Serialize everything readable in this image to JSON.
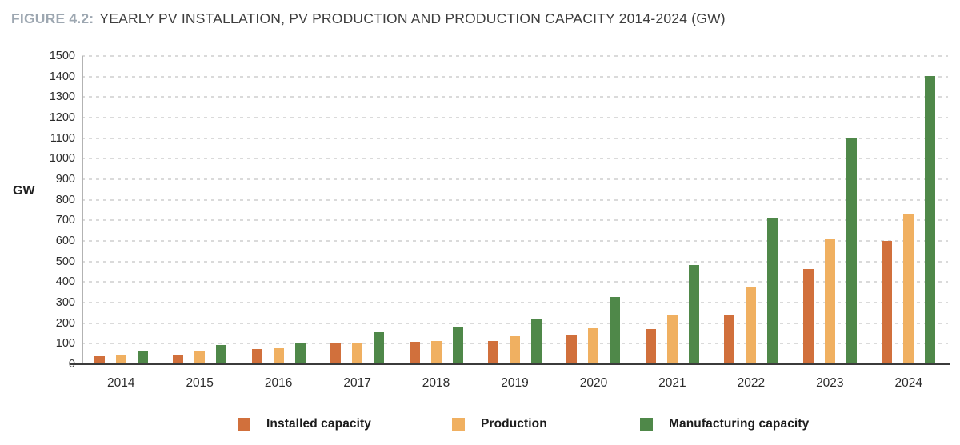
{
  "header": {
    "figure_label": "FIGURE 4.2:",
    "title": "YEARLY PV INSTALLATION, PV PRODUCTION AND PRODUCTION CAPACITY 2014-2024 (GW)"
  },
  "chart_data": {
    "type": "bar",
    "title": "FIGURE 4.2: YEARLY PV INSTALLATION, PV PRODUCTION AND PRODUCTION CAPACITY 2014-2024 (GW)",
    "xlabel": "",
    "ylabel": "GW",
    "ylim": [
      0,
      1500
    ],
    "ytick_step": 100,
    "grid": "dashed-horizontal",
    "legend_position": "bottom",
    "categories": [
      "2014",
      "2015",
      "2016",
      "2017",
      "2018",
      "2019",
      "2020",
      "2021",
      "2022",
      "2023",
      "2024"
    ],
    "series": [
      {
        "name": "Installed capacity",
        "key": "installed-capacity",
        "color": "#d1703c",
        "values": [
          40,
          48,
          76,
          100,
          110,
          112,
          145,
          172,
          243,
          462,
          600
        ]
      },
      {
        "name": "Production",
        "key": "production",
        "color": "#f0b061",
        "values": [
          45,
          64,
          77,
          104,
          115,
          138,
          177,
          242,
          378,
          611,
          727
        ]
      },
      {
        "name": "Manufacturing capacity",
        "key": "manufacturing-capacity",
        "color": "#4f8849",
        "values": [
          65,
          94,
          106,
          156,
          184,
          221,
          329,
          483,
          715,
          1099,
          1402
        ]
      }
    ],
    "colors": {
      "figure_label": "#9da7b1",
      "title_text": "#3d3d3d",
      "gridline": "#dadada",
      "x_axis_line": "#3b3b3b",
      "y_axis_line": "#b3b3b3"
    }
  }
}
